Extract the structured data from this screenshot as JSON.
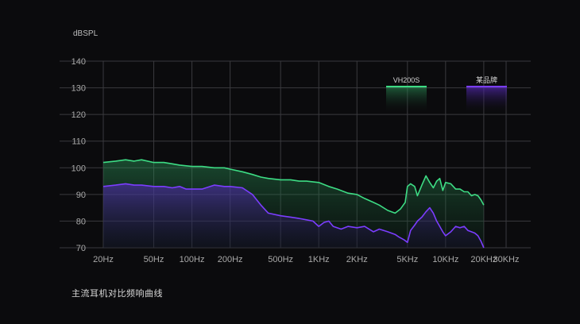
{
  "caption": "主流耳机对比频响曲线",
  "colors": {
    "background": "#0b0b0d",
    "grid": "#3a3a3e",
    "vh200s": "#3ddc84",
    "brand": "#7b3dff"
  },
  "chart_data": {
    "type": "area",
    "title": "",
    "ylabel": "dBSPL",
    "xlabel": "",
    "xscale": "log",
    "ylim": [
      70,
      140
    ],
    "yticks": [
      70,
      80,
      90,
      100,
      110,
      120,
      130,
      140
    ],
    "xticks": [
      {
        "value": 20,
        "label": "20Hz"
      },
      {
        "value": 50,
        "label": "50Hz"
      },
      {
        "value": 100,
        "label": "100Hz"
      },
      {
        "value": 200,
        "label": "200Hz"
      },
      {
        "value": 500,
        "label": "500Hz"
      },
      {
        "value": 1000,
        "label": "1KHz"
      },
      {
        "value": 2000,
        "label": "2KHz"
      },
      {
        "value": 5000,
        "label": "5KHz"
      },
      {
        "value": 10000,
        "label": "10KHz"
      },
      {
        "value": 20000,
        "label": "20KHz"
      },
      {
        "value": 30000,
        "label": "30KHz"
      }
    ],
    "grid": true,
    "legend_position": "top-right",
    "series": [
      {
        "name": "VH200S",
        "color": "#3ddc84",
        "x": [
          20,
          25,
          30,
          35,
          40,
          50,
          60,
          70,
          80,
          100,
          120,
          150,
          180,
          200,
          250,
          300,
          350,
          400,
          500,
          600,
          700,
          800,
          1000,
          1200,
          1400,
          1700,
          2000,
          2300,
          2700,
          3000,
          3500,
          4000,
          4400,
          4800,
          5000,
          5300,
          5700,
          6000,
          6500,
          7000,
          7500,
          8000,
          8500,
          9000,
          9500,
          10000,
          11000,
          12000,
          13000,
          14000,
          15000,
          16000,
          17000,
          18000,
          19000,
          20000
        ],
        "y": [
          102,
          102.5,
          103,
          102.5,
          103,
          102,
          102,
          101.5,
          101,
          100.5,
          100.5,
          100,
          100,
          99.5,
          98.5,
          97.5,
          96.5,
          96,
          95.5,
          95.5,
          95,
          95,
          94.5,
          93,
          92,
          90.5,
          90,
          88.5,
          87,
          86,
          84,
          83,
          84.5,
          87,
          93,
          94,
          93,
          89.5,
          93.5,
          97,
          94.5,
          92.5,
          95,
          96,
          91.5,
          94.5,
          94,
          92,
          92,
          91,
          91,
          89.5,
          90,
          89.5,
          88,
          86
        ]
      },
      {
        "name": "某品牌",
        "color": "#7b3dff",
        "x": [
          20,
          25,
          30,
          35,
          40,
          50,
          60,
          70,
          80,
          90,
          100,
          120,
          150,
          180,
          200,
          250,
          300,
          350,
          400,
          500,
          600,
          700,
          800,
          900,
          1000,
          1100,
          1200,
          1300,
          1500,
          1700,
          2000,
          2300,
          2700,
          3000,
          3500,
          4000,
          4300,
          4700,
          5000,
          5300,
          5700,
          6000,
          6500,
          7000,
          7500,
          8000,
          8500,
          9000,
          9500,
          10000,
          11000,
          12000,
          13000,
          14000,
          15000,
          16000,
          17000,
          18000,
          19000,
          20000
        ],
        "y": [
          93,
          93.5,
          94,
          93.5,
          93.5,
          93,
          93,
          92.5,
          93,
          92,
          92,
          92,
          93.5,
          93,
          93,
          92.5,
          90,
          86,
          83,
          82,
          81.5,
          81,
          80.5,
          80,
          78,
          79.5,
          80,
          78,
          77,
          78,
          77.5,
          78,
          76,
          77,
          76,
          75,
          74,
          73,
          72,
          76.5,
          78.5,
          80,
          81.5,
          83.5,
          85,
          83,
          80,
          78,
          76,
          74.5,
          76,
          78,
          77.5,
          78,
          76.5,
          76,
          75.5,
          74.5,
          72.5,
          70
        ]
      }
    ]
  }
}
